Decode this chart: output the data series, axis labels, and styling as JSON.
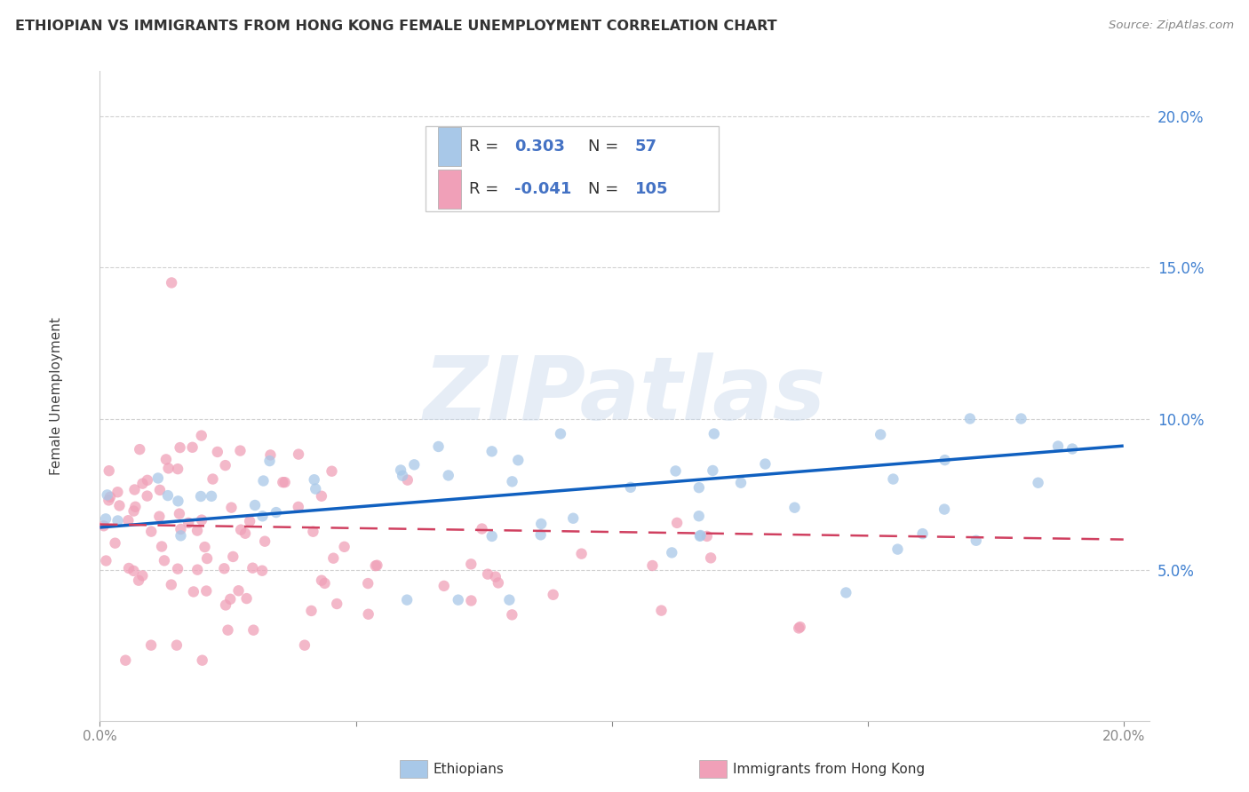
{
  "title": "ETHIOPIAN VS IMMIGRANTS FROM HONG KONG FEMALE UNEMPLOYMENT CORRELATION CHART",
  "source": "Source: ZipAtlas.com",
  "ylabel": "Female Unemployment",
  "xlim": [
    0.0,
    0.205
  ],
  "ylim": [
    0.0,
    0.215
  ],
  "yticks": [
    0.05,
    0.1,
    0.15,
    0.2
  ],
  "ytick_labels": [
    "5.0%",
    "10.0%",
    "15.0%",
    "20.0%"
  ],
  "xticks": [
    0.0,
    0.05,
    0.1,
    0.15,
    0.2
  ],
  "xtick_labels": [
    "0.0%",
    "",
    "",
    "",
    "20.0%"
  ],
  "ethiopians_R": "0.303",
  "ethiopians_N": "57",
  "hk_R": "-0.041",
  "hk_N": "105",
  "legend1_label": "Ethiopians",
  "legend2_label": "Immigrants from Hong Kong",
  "watermark": "ZIPatlas",
  "ethiopians_color": "#a8c8e8",
  "hk_color": "#f0a0b8",
  "ethiopians_line_color": "#1060c0",
  "hk_line_color": "#d04060",
  "eth_line_x0": 0.0,
  "eth_line_y0": 0.064,
  "eth_line_x1": 0.2,
  "eth_line_y1": 0.091,
  "hk_line_x0": 0.0,
  "hk_line_y0": 0.065,
  "hk_line_x1": 0.2,
  "hk_line_y1": 0.06,
  "background_color": "#ffffff",
  "grid_color": "#cccccc",
  "ytick_color": "#4080d0",
  "xtick_color": "#888888"
}
